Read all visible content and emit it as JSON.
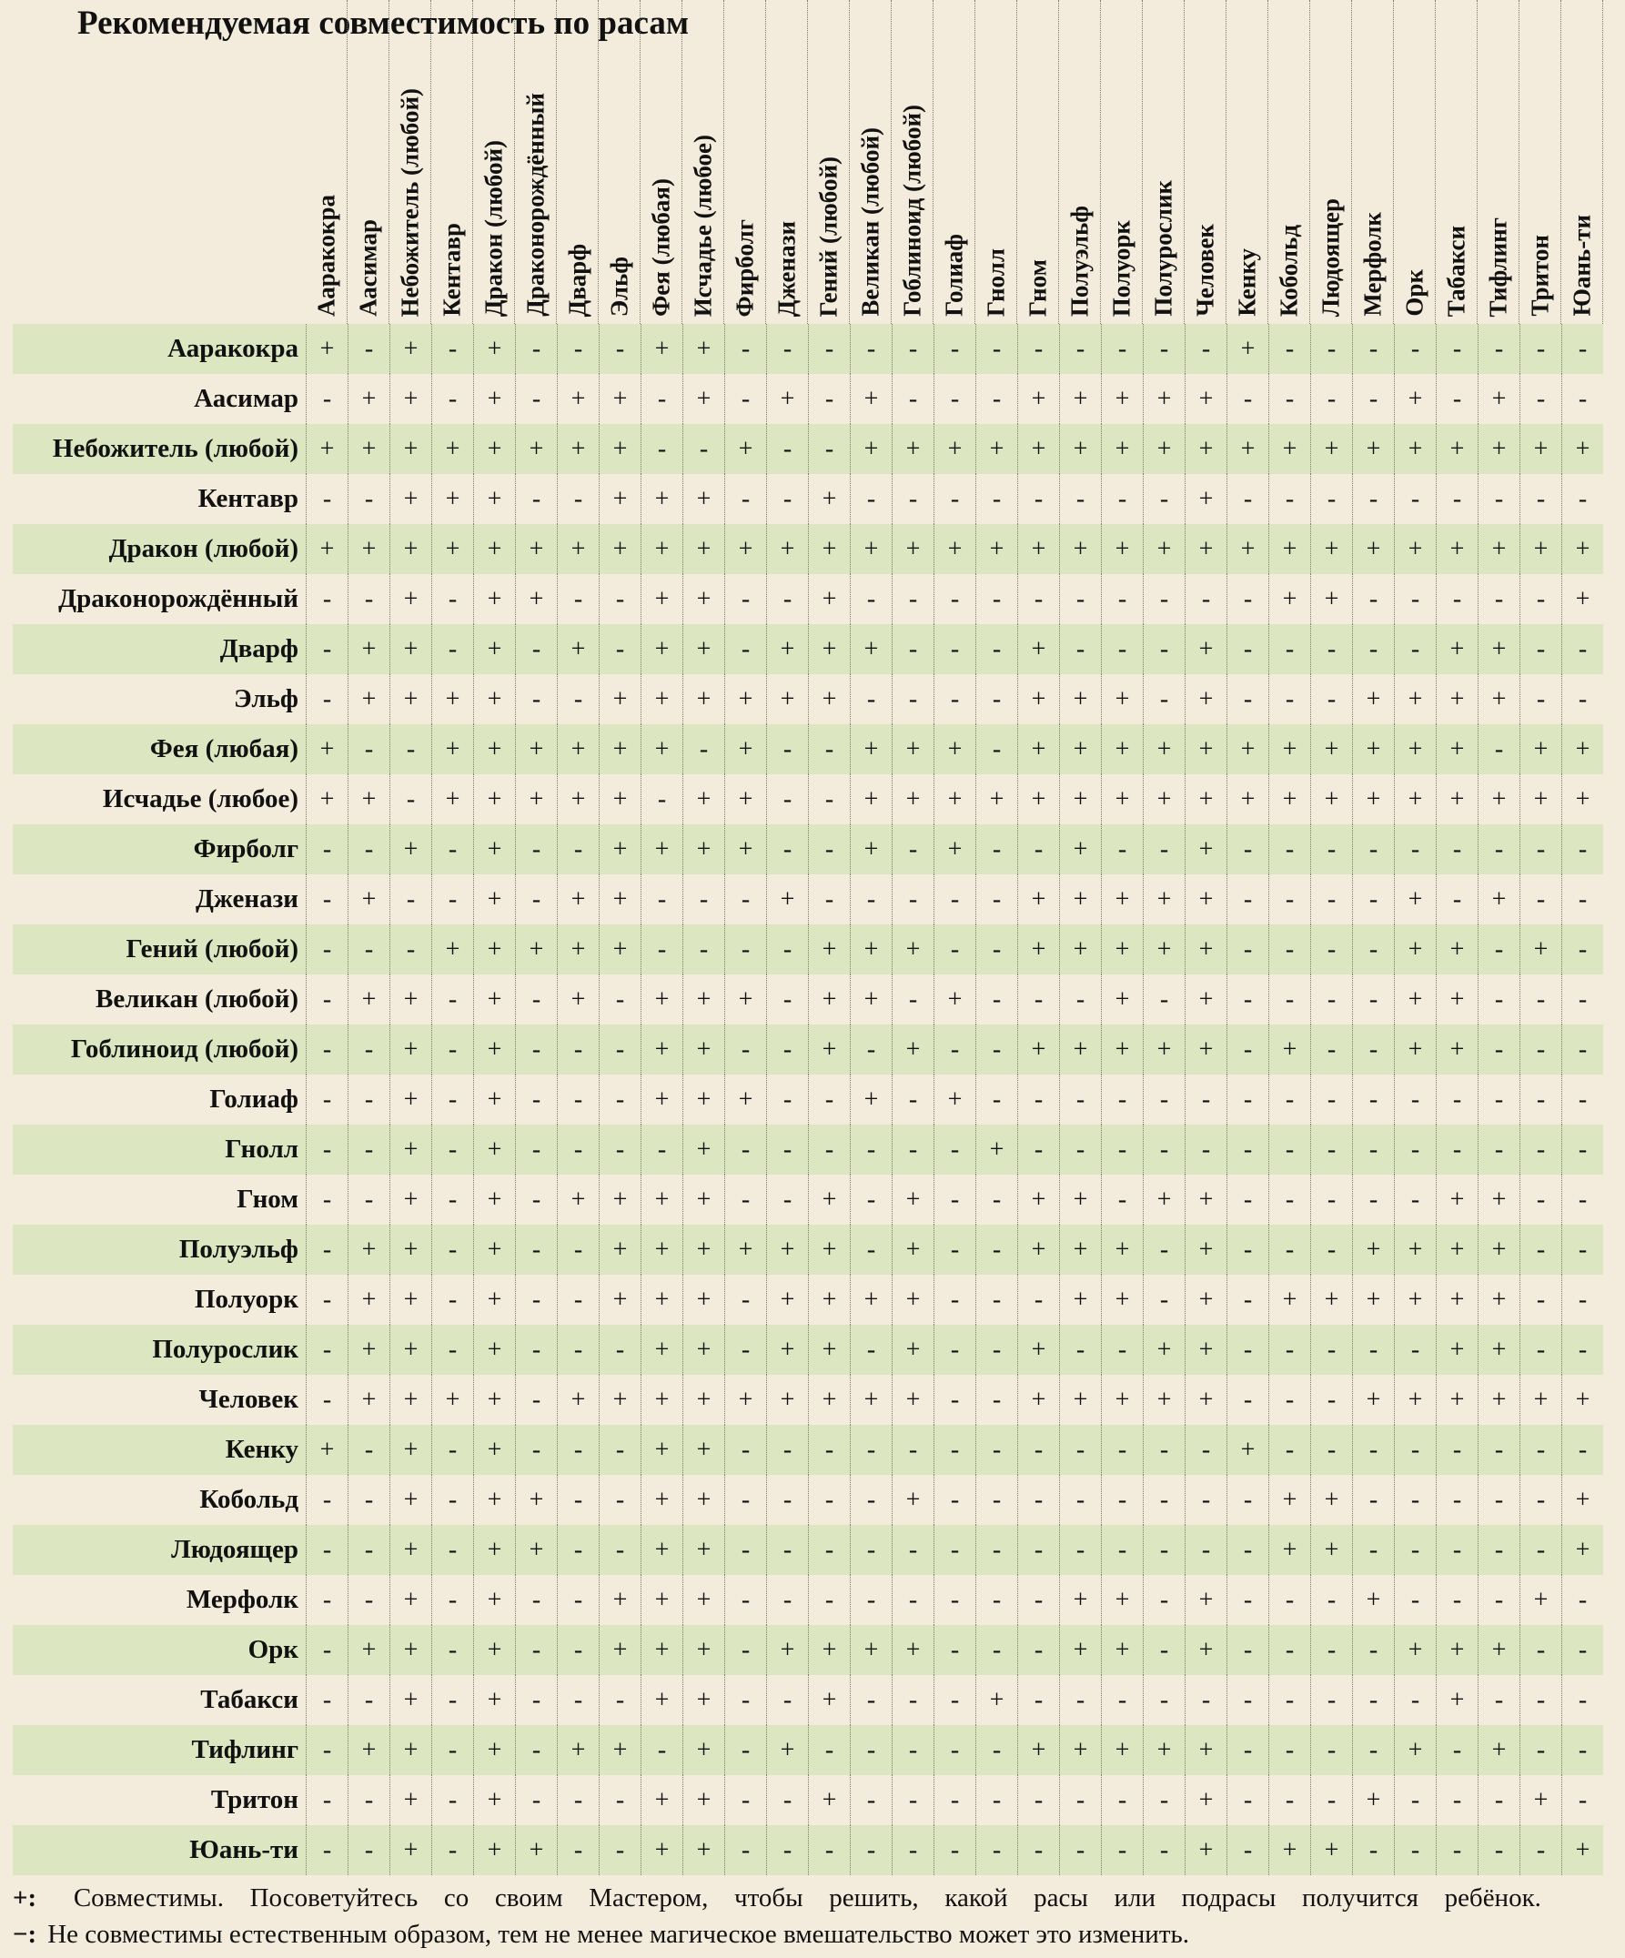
{
  "title": "Рекомендуемая совместимость по расам",
  "columns": [
    "Ааракокра",
    "Аасимар",
    "Небожитель (любой)",
    "Кентавр",
    "Дракон (любой)",
    "Драконорождённый",
    "Дварф",
    "Эльф",
    "Фея (любая)",
    "Исчадье (любое)",
    "Фирболг",
    "Дженази",
    "Гений (любой)",
    "Великан (любой)",
    "Гоблиноид (любой)",
    "Голиаф",
    "Гнолл",
    "Гном",
    "Полуэльф",
    "Полуорк",
    "Полурослик",
    "Человек",
    "Кенку",
    "Кобольд",
    "Людоящер",
    "Мерфолк",
    "Орк",
    "Табакси",
    "Тифлинг",
    "Тритон",
    "Юань-ти"
  ],
  "rows": [
    {
      "label": "Ааракокра",
      "values": [
        "+",
        "-",
        "+",
        "-",
        "+",
        "-",
        "-",
        "-",
        "+",
        "+",
        "-",
        "-",
        "-",
        "-",
        "-",
        "-",
        "-",
        "-",
        "-",
        "-",
        "-",
        "-",
        "+",
        "-",
        "-",
        "-",
        "-",
        "-",
        "-",
        "-",
        "-"
      ]
    },
    {
      "label": "Аасимар",
      "values": [
        "-",
        "+",
        "+",
        "-",
        "+",
        "-",
        "+",
        "+",
        "-",
        "+",
        "-",
        "+",
        "-",
        "+",
        "-",
        "-",
        "-",
        "+",
        "+",
        "+",
        "+",
        "+",
        "-",
        "-",
        "-",
        "-",
        "+",
        "-",
        "+",
        "-",
        "-"
      ]
    },
    {
      "label": "Небожитель (любой)",
      "values": [
        "+",
        "+",
        "+",
        "+",
        "+",
        "+",
        "+",
        "+",
        "-",
        "-",
        "+",
        "-",
        "-",
        "+",
        "+",
        "+",
        "+",
        "+",
        "+",
        "+",
        "+",
        "+",
        "+",
        "+",
        "+",
        "+",
        "+",
        "+",
        "+",
        "+",
        "+"
      ]
    },
    {
      "label": "Кентавр",
      "values": [
        "-",
        "-",
        "+",
        "+",
        "+",
        "-",
        "-",
        "+",
        "+",
        "+",
        "-",
        "-",
        "+",
        "-",
        "-",
        "-",
        "-",
        "-",
        "-",
        "-",
        "-",
        "+",
        "-",
        "-",
        "-",
        "-",
        "-",
        "-",
        "-",
        "-",
        "-"
      ]
    },
    {
      "label": "Дракон (любой)",
      "values": [
        "+",
        "+",
        "+",
        "+",
        "+",
        "+",
        "+",
        "+",
        "+",
        "+",
        "+",
        "+",
        "+",
        "+",
        "+",
        "+",
        "+",
        "+",
        "+",
        "+",
        "+",
        "+",
        "+",
        "+",
        "+",
        "+",
        "+",
        "+",
        "+",
        "+",
        "+"
      ]
    },
    {
      "label": "Драконорождённый",
      "values": [
        "-",
        "-",
        "+",
        "-",
        "+",
        "+",
        "-",
        "-",
        "+",
        "+",
        "-",
        "-",
        "+",
        "-",
        "-",
        "-",
        "-",
        "-",
        "-",
        "-",
        "-",
        "-",
        "-",
        "+",
        "+",
        "-",
        "-",
        "-",
        "-",
        "-",
        "+"
      ]
    },
    {
      "label": "Дварф",
      "values": [
        "-",
        "+",
        "+",
        "-",
        "+",
        "-",
        "+",
        "-",
        "+",
        "+",
        "-",
        "+",
        "+",
        "+",
        "-",
        "-",
        "-",
        "+",
        "-",
        "-",
        "-",
        "+",
        "-",
        "-",
        "-",
        "-",
        "-",
        "+",
        "+",
        "-",
        "-"
      ]
    },
    {
      "label": "Эльф",
      "values": [
        "-",
        "+",
        "+",
        "+",
        "+",
        "-",
        "-",
        "+",
        "+",
        "+",
        "+",
        "+",
        "+",
        "-",
        "-",
        "-",
        "-",
        "+",
        "+",
        "+",
        "-",
        "+",
        "-",
        "-",
        "-",
        "+",
        "+",
        "+",
        "+",
        "-",
        "-"
      ]
    },
    {
      "label": "Фея (любая)",
      "values": [
        "+",
        "-",
        "-",
        "+",
        "+",
        "+",
        "+",
        "+",
        "+",
        "-",
        "+",
        "-",
        "-",
        "+",
        "+",
        "+",
        "-",
        "+",
        "+",
        "+",
        "+",
        "+",
        "+",
        "+",
        "+",
        "+",
        "+",
        "+",
        "-",
        "+",
        "+"
      ]
    },
    {
      "label": "Исчадье (любое)",
      "values": [
        "+",
        "+",
        "-",
        "+",
        "+",
        "+",
        "+",
        "+",
        "-",
        "+",
        "+",
        "-",
        "-",
        "+",
        "+",
        "+",
        "+",
        "+",
        "+",
        "+",
        "+",
        "+",
        "+",
        "+",
        "+",
        "+",
        "+",
        "+",
        "+",
        "+",
        "+"
      ]
    },
    {
      "label": "Фирболг",
      "values": [
        "-",
        "-",
        "+",
        "-",
        "+",
        "-",
        "-",
        "+",
        "+",
        "+",
        "+",
        "-",
        "-",
        "+",
        "-",
        "+",
        "-",
        "-",
        "+",
        "-",
        "-",
        "+",
        "-",
        "-",
        "-",
        "-",
        "-",
        "-",
        "-",
        "-",
        "-"
      ]
    },
    {
      "label": "Дженази",
      "values": [
        "-",
        "+",
        "-",
        "-",
        "+",
        "-",
        "+",
        "+",
        "-",
        "-",
        "-",
        "+",
        "-",
        "-",
        "-",
        "-",
        "-",
        "+",
        "+",
        "+",
        "+",
        "+",
        "-",
        "-",
        "-",
        "-",
        "+",
        "-",
        "+",
        "-",
        "-"
      ]
    },
    {
      "label": "Гений (любой)",
      "values": [
        "-",
        "-",
        "-",
        "+",
        "+",
        "+",
        "+",
        "+",
        "-",
        "-",
        "-",
        "-",
        "+",
        "+",
        "+",
        "-",
        "-",
        "+",
        "+",
        "+",
        "+",
        "+",
        "-",
        "-",
        "-",
        "-",
        "+",
        "+",
        "-",
        "+",
        "-"
      ]
    },
    {
      "label": "Великан (любой)",
      "values": [
        "-",
        "+",
        "+",
        "-",
        "+",
        "-",
        "+",
        "-",
        "+",
        "+",
        "+",
        "-",
        "+",
        "+",
        "-",
        "+",
        "-",
        "-",
        "-",
        "+",
        "-",
        "+",
        "-",
        "-",
        "-",
        "-",
        "+",
        "+",
        "-",
        "-",
        "-"
      ]
    },
    {
      "label": "Гоблиноид (любой)",
      "values": [
        "-",
        "-",
        "+",
        "-",
        "+",
        "-",
        "-",
        "-",
        "+",
        "+",
        "-",
        "-",
        "+",
        "-",
        "+",
        "-",
        "-",
        "+",
        "+",
        "+",
        "+",
        "+",
        "-",
        "+",
        "-",
        "-",
        "+",
        "+",
        "-",
        "-",
        "-"
      ]
    },
    {
      "label": "Голиаф",
      "values": [
        "-",
        "-",
        "+",
        "-",
        "+",
        "-",
        "-",
        "-",
        "+",
        "+",
        "+",
        "-",
        "-",
        "+",
        "-",
        "+",
        "-",
        "-",
        "-",
        "-",
        "-",
        "-",
        "-",
        "-",
        "-",
        "-",
        "-",
        "-",
        "-",
        "-",
        "-"
      ]
    },
    {
      "label": "Гнолл",
      "values": [
        "-",
        "-",
        "+",
        "-",
        "+",
        "-",
        "-",
        "-",
        "-",
        "+",
        "-",
        "-",
        "-",
        "-",
        "-",
        "-",
        "+",
        "-",
        "-",
        "-",
        "-",
        "-",
        "-",
        "-",
        "-",
        "-",
        "-",
        "-",
        "-",
        "-",
        "-"
      ]
    },
    {
      "label": "Гном",
      "values": [
        "-",
        "-",
        "+",
        "-",
        "+",
        "-",
        "+",
        "+",
        "+",
        "+",
        "-",
        "-",
        "+",
        "-",
        "+",
        "-",
        "-",
        "+",
        "+",
        "-",
        "+",
        "+",
        "-",
        "-",
        "-",
        "-",
        "-",
        "+",
        "+",
        "-",
        "-"
      ]
    },
    {
      "label": "Полуэльф",
      "values": [
        "-",
        "+",
        "+",
        "-",
        "+",
        "-",
        "-",
        "+",
        "+",
        "+",
        "+",
        "+",
        "+",
        "-",
        "+",
        "-",
        "-",
        "+",
        "+",
        "+",
        "-",
        "+",
        "-",
        "-",
        "-",
        "+",
        "+",
        "+",
        "+",
        "-",
        "-"
      ]
    },
    {
      "label": "Полуорк",
      "values": [
        "-",
        "+",
        "+",
        "-",
        "+",
        "-",
        "-",
        "+",
        "+",
        "+",
        "-",
        "+",
        "+",
        "+",
        "+",
        "-",
        "-",
        "-",
        "+",
        "+",
        "-",
        "+",
        "-",
        "+",
        "+",
        "+",
        "+",
        "+",
        "+",
        "-",
        "-"
      ]
    },
    {
      "label": "Полурослик",
      "values": [
        "-",
        "+",
        "+",
        "-",
        "+",
        "-",
        "-",
        "-",
        "+",
        "+",
        "-",
        "+",
        "+",
        "-",
        "+",
        "-",
        "-",
        "+",
        "-",
        "-",
        "+",
        "+",
        "-",
        "-",
        "-",
        "-",
        "-",
        "+",
        "+",
        "-",
        "-"
      ]
    },
    {
      "label": "Человек",
      "values": [
        "-",
        "+",
        "+",
        "+",
        "+",
        "-",
        "+",
        "+",
        "+",
        "+",
        "+",
        "+",
        "+",
        "+",
        "+",
        "-",
        "-",
        "+",
        "+",
        "+",
        "+",
        "+",
        "-",
        "-",
        "-",
        "+",
        "+",
        "+",
        "+",
        "+",
        "+"
      ]
    },
    {
      "label": "Кенку",
      "values": [
        "+",
        "-",
        "+",
        "-",
        "+",
        "-",
        "-",
        "-",
        "+",
        "+",
        "-",
        "-",
        "-",
        "-",
        "-",
        "-",
        "-",
        "-",
        "-",
        "-",
        "-",
        "-",
        "+",
        "-",
        "-",
        "-",
        "-",
        "-",
        "-",
        "-",
        "-"
      ]
    },
    {
      "label": "Кобольд",
      "values": [
        "-",
        "-",
        "+",
        "-",
        "+",
        "+",
        "-",
        "-",
        "+",
        "+",
        "-",
        "-",
        "-",
        "-",
        "+",
        "-",
        "-",
        "-",
        "-",
        "-",
        "-",
        "-",
        "-",
        "+",
        "+",
        "-",
        "-",
        "-",
        "-",
        "-",
        "+"
      ]
    },
    {
      "label": "Людоящер",
      "values": [
        "-",
        "-",
        "+",
        "-",
        "+",
        "+",
        "-",
        "-",
        "+",
        "+",
        "-",
        "-",
        "-",
        "-",
        "-",
        "-",
        "-",
        "-",
        "-",
        "-",
        "-",
        "-",
        "-",
        "+",
        "+",
        "-",
        "-",
        "-",
        "-",
        "-",
        "+"
      ]
    },
    {
      "label": "Мерфолк",
      "values": [
        "-",
        "-",
        "+",
        "-",
        "+",
        "-",
        "-",
        "+",
        "+",
        "+",
        "-",
        "-",
        "-",
        "-",
        "-",
        "-",
        "-",
        "-",
        "+",
        "+",
        "-",
        "+",
        "-",
        "-",
        "-",
        "+",
        "-",
        "-",
        "-",
        "+",
        "-"
      ]
    },
    {
      "label": "Орк",
      "values": [
        "-",
        "+",
        "+",
        "-",
        "+",
        "-",
        "-",
        "+",
        "+",
        "+",
        "-",
        "+",
        "+",
        "+",
        "+",
        "-",
        "-",
        "-",
        "+",
        "+",
        "-",
        "+",
        "-",
        "-",
        "-",
        "-",
        "+",
        "+",
        "+",
        "-",
        "-"
      ]
    },
    {
      "label": "Табакси",
      "values": [
        "-",
        "-",
        "+",
        "-",
        "+",
        "-",
        "-",
        "-",
        "+",
        "+",
        "-",
        "-",
        "+",
        "-",
        "-",
        "-",
        "+",
        "-",
        "-",
        "-",
        "-",
        "-",
        "-",
        "-",
        "-",
        "-",
        "-",
        "+",
        "-",
        "-",
        "-"
      ]
    },
    {
      "label": "Тифлинг",
      "values": [
        "-",
        "+",
        "+",
        "-",
        "+",
        "-",
        "+",
        "+",
        "-",
        "+",
        "-",
        "+",
        "-",
        "-",
        "-",
        "-",
        "-",
        "+",
        "+",
        "+",
        "+",
        "+",
        "-",
        "-",
        "-",
        "-",
        "+",
        "-",
        "+",
        "-",
        "-"
      ]
    },
    {
      "label": "Тритон",
      "values": [
        "-",
        "-",
        "+",
        "-",
        "+",
        "-",
        "-",
        "-",
        "+",
        "+",
        "-",
        "-",
        "+",
        "-",
        "-",
        "-",
        "-",
        "-",
        "-",
        "-",
        "-",
        "+",
        "-",
        "-",
        "-",
        "+",
        "-",
        "-",
        "-",
        "+",
        "-"
      ]
    },
    {
      "label": "Юань-ти",
      "values": [
        "-",
        "-",
        "+",
        "-",
        "+",
        "+",
        "-",
        "-",
        "+",
        "+",
        "-",
        "-",
        "-",
        "-",
        "-",
        "-",
        "-",
        "-",
        "-",
        "-",
        "-",
        "+",
        "-",
        "+",
        "+",
        "-",
        "-",
        "-",
        "-",
        "-",
        "+"
      ]
    }
  ],
  "legend": {
    "plus_symbol": "+:",
    "plus_words": [
      "Совместимы.",
      "Посоветуйтесь",
      "со",
      "своим",
      "Мастером,",
      "чтобы",
      "решить,",
      "какой",
      "расы",
      "или",
      "подрасы",
      "получится",
      "ребёнок."
    ],
    "minus_symbol": "−:",
    "minus_text": "Не совместимы естественным образом, тем не менее магическое вмешательство может это изменить."
  },
  "colors": {
    "background": "#f3ecdc",
    "row_shade": "#dce6c0",
    "text": "#111111"
  }
}
